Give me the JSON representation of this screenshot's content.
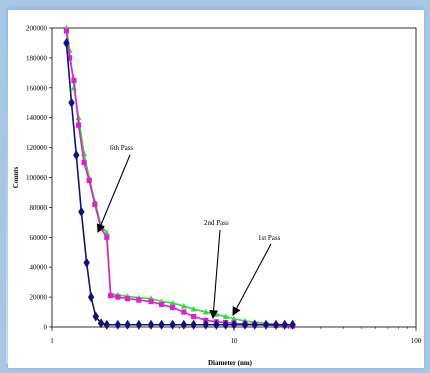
{
  "chart_data": {
    "type": "line",
    "title": "",
    "xlabel": "Diameter (nm)",
    "ylabel": "Counts",
    "x_scale": "log",
    "xlim": [
      1,
      100
    ],
    "ylim": [
      0,
      200000
    ],
    "x_ticks": [
      "1",
      "10",
      "100"
    ],
    "y_ticks": [
      "0",
      "20000",
      "40000",
      "60000",
      "80000",
      "100000",
      "120000",
      "140000",
      "160000",
      "180000",
      "200000"
    ],
    "grid": false,
    "legend": "none",
    "series": [
      {
        "name": "1st Pass",
        "color": "#33dd33",
        "marker": "triangle",
        "points": [
          [
            1.2,
            200000
          ],
          [
            1.25,
            185000
          ],
          [
            1.32,
            160000
          ],
          [
            1.4,
            140000
          ],
          [
            1.5,
            116000
          ],
          [
            1.6,
            100000
          ],
          [
            1.72,
            84000
          ],
          [
            1.86,
            68000
          ],
          [
            2.0,
            63000
          ],
          [
            2.1,
            22000
          ],
          [
            2.3,
            21500
          ],
          [
            2.6,
            20500
          ],
          [
            3.0,
            19500
          ],
          [
            3.5,
            19000
          ],
          [
            4.0,
            17000
          ],
          [
            4.6,
            16000
          ],
          [
            5.3,
            14000
          ],
          [
            6.0,
            12000
          ],
          [
            7.0,
            10000
          ],
          [
            8.0,
            8500
          ],
          [
            9.0,
            7000
          ],
          [
            10.0,
            5500
          ],
          [
            11.5,
            4000
          ],
          [
            13.0,
            3200
          ],
          [
            15.0,
            2500
          ],
          [
            17.0,
            1800
          ],
          [
            19.0,
            1200
          ],
          [
            21.0,
            800
          ]
        ]
      },
      {
        "name": "2nd Pass",
        "color": "#e020d0",
        "marker": "square",
        "points": [
          [
            1.2,
            198000
          ],
          [
            1.25,
            180000
          ],
          [
            1.32,
            165000
          ],
          [
            1.4,
            135000
          ],
          [
            1.5,
            110000
          ],
          [
            1.6,
            98000
          ],
          [
            1.72,
            82000
          ],
          [
            1.86,
            66000
          ],
          [
            2.0,
            60000
          ],
          [
            2.1,
            21000
          ],
          [
            2.3,
            20000
          ],
          [
            2.6,
            19000
          ],
          [
            3.0,
            18000
          ],
          [
            3.5,
            17000
          ],
          [
            4.0,
            15000
          ],
          [
            4.6,
            13000
          ],
          [
            5.3,
            10000
          ],
          [
            6.0,
            7000
          ],
          [
            7.0,
            4500
          ],
          [
            8.0,
            3500
          ],
          [
            9.0,
            3000
          ],
          [
            10.0,
            2500
          ],
          [
            11.5,
            2000
          ],
          [
            13.0,
            1700
          ],
          [
            15.0,
            1400
          ],
          [
            17.0,
            1100
          ],
          [
            19.0,
            900
          ],
          [
            21.0,
            700
          ]
        ]
      },
      {
        "name": "6th Pass",
        "color": "#12127a",
        "marker": "diamond",
        "points": [
          [
            1.2,
            190000
          ],
          [
            1.28,
            150000
          ],
          [
            1.36,
            115000
          ],
          [
            1.45,
            77000
          ],
          [
            1.55,
            43000
          ],
          [
            1.64,
            20000
          ],
          [
            1.74,
            7000
          ],
          [
            1.86,
            2500
          ],
          [
            2.0,
            1500
          ],
          [
            2.3,
            1500
          ],
          [
            2.6,
            1500
          ],
          [
            3.0,
            1500
          ],
          [
            3.5,
            1500
          ],
          [
            4.0,
            1500
          ],
          [
            4.6,
            1500
          ],
          [
            5.3,
            1500
          ],
          [
            6.0,
            1500
          ],
          [
            7.0,
            1500
          ],
          [
            8.0,
            1500
          ],
          [
            9.0,
            1500
          ],
          [
            10.0,
            1500
          ],
          [
            11.5,
            1500
          ],
          [
            13.0,
            1500
          ],
          [
            15.0,
            1500
          ],
          [
            17.0,
            1500
          ],
          [
            19.0,
            1500
          ],
          [
            21.0,
            1500
          ]
        ]
      }
    ],
    "annotations": [
      {
        "text": "6th Pass",
        "series": "6th Pass"
      },
      {
        "text": "2nd Pass",
        "series": "2nd Pass"
      },
      {
        "text": "1st Pass",
        "series": "1st Pass"
      }
    ]
  }
}
